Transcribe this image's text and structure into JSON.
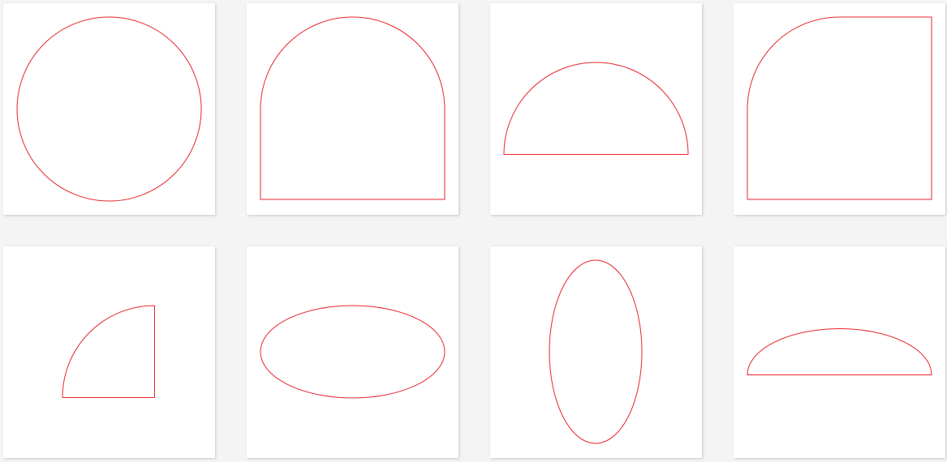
{
  "theme": {
    "stroke_color": "#e8262d",
    "card_background": "#ffffff",
    "page_background": "#f4f4f4"
  },
  "shapes": [
    {
      "name": "circle"
    },
    {
      "name": "arch-rectangle"
    },
    {
      "name": "semicircle"
    },
    {
      "name": "rounded-corner-square"
    },
    {
      "name": "quarter-circle"
    },
    {
      "name": "horizontal-ellipse"
    },
    {
      "name": "vertical-ellipse"
    },
    {
      "name": "half-ellipse"
    }
  ]
}
